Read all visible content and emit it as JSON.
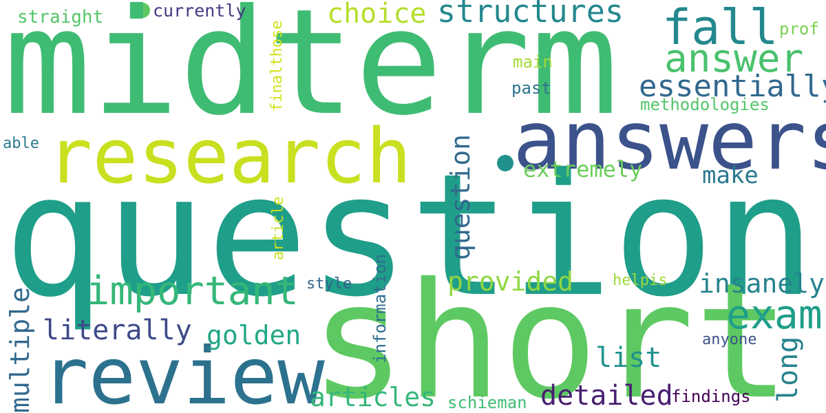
{
  "cloud": {
    "words": {
      "midterm": {
        "text": "midterm",
        "color": "#3fbc73"
      },
      "questions": {
        "text": "questions",
        "color": "#1f9e89"
      },
      "short": {
        "text": "short",
        "color": "#5ec962"
      },
      "answers": {
        "text": "answers",
        "color": "#3b528b"
      },
      "research": {
        "text": "research",
        "color": "#c8e020"
      },
      "review": {
        "text": "review",
        "color": "#2c728e"
      },
      "important": {
        "text": "important",
        "color": "#35b779"
      },
      "structures": {
        "text": "structures",
        "color": "#23888e"
      },
      "fall": {
        "text": "fall",
        "color": "#23898e"
      },
      "answer": {
        "text": "answer",
        "color": "#4ac16d"
      },
      "essentially": {
        "text": "essentially",
        "color": "#31688e"
      },
      "choice": {
        "text": "choice",
        "color": "#b5de2b"
      },
      "exam": {
        "text": "exam",
        "color": "#1f9e89"
      },
      "insanely": {
        "text": "insanely",
        "color": "#26828e"
      },
      "provided": {
        "text": "provided",
        "color": "#90d743"
      },
      "literally": {
        "text": "literally",
        "color": "#3e4989"
      },
      "golden": {
        "text": "golden",
        "color": "#22a785"
      },
      "detailed": {
        "text": "detailed",
        "color": "#482071"
      },
      "articles": {
        "text": "articles",
        "color": "#35b779"
      },
      "list": {
        "text": "list",
        "color": "#21918c"
      },
      "extremely": {
        "text": "extremely",
        "color": "#6ccd5a"
      },
      "make": {
        "text": "make",
        "color": "#2a788e"
      },
      "methodologies": {
        "text": "methodologies",
        "color": "#54c568"
      },
      "currently": {
        "text": "currently",
        "color": "#443983"
      },
      "straight": {
        "text": "straight",
        "color": "#54c568"
      },
      "prof": {
        "text": "prof",
        "color": "#7ad151"
      },
      "main": {
        "text": "main",
        "color": "#a5db36"
      },
      "past": {
        "text": "past",
        "color": "#2c728e"
      },
      "able": {
        "text": "able",
        "color": "#2a788e"
      },
      "style": {
        "text": "style",
        "color": "#33638d"
      },
      "helpis": {
        "text": "helpis",
        "color": "#9bd93c"
      },
      "anyone": {
        "text": "anyone",
        "color": "#3b528b"
      },
      "findings": {
        "text": "findings",
        "color": "#440154"
      },
      "schieman": {
        "text": "schieman",
        "color": "#3fbc73"
      },
      "question": {
        "text": "question",
        "color": "#306a8e"
      },
      "multiple": {
        "text": "multiple",
        "color": "#31688e"
      },
      "long": {
        "text": "long",
        "color": "#26828e"
      },
      "information": {
        "text": "information",
        "color": "#2e6e8e"
      },
      "article": {
        "text": "article",
        "color": "#c8e020"
      },
      "finalthose": {
        "text": "finalthose",
        "color": "#d2e21b"
      }
    }
  }
}
